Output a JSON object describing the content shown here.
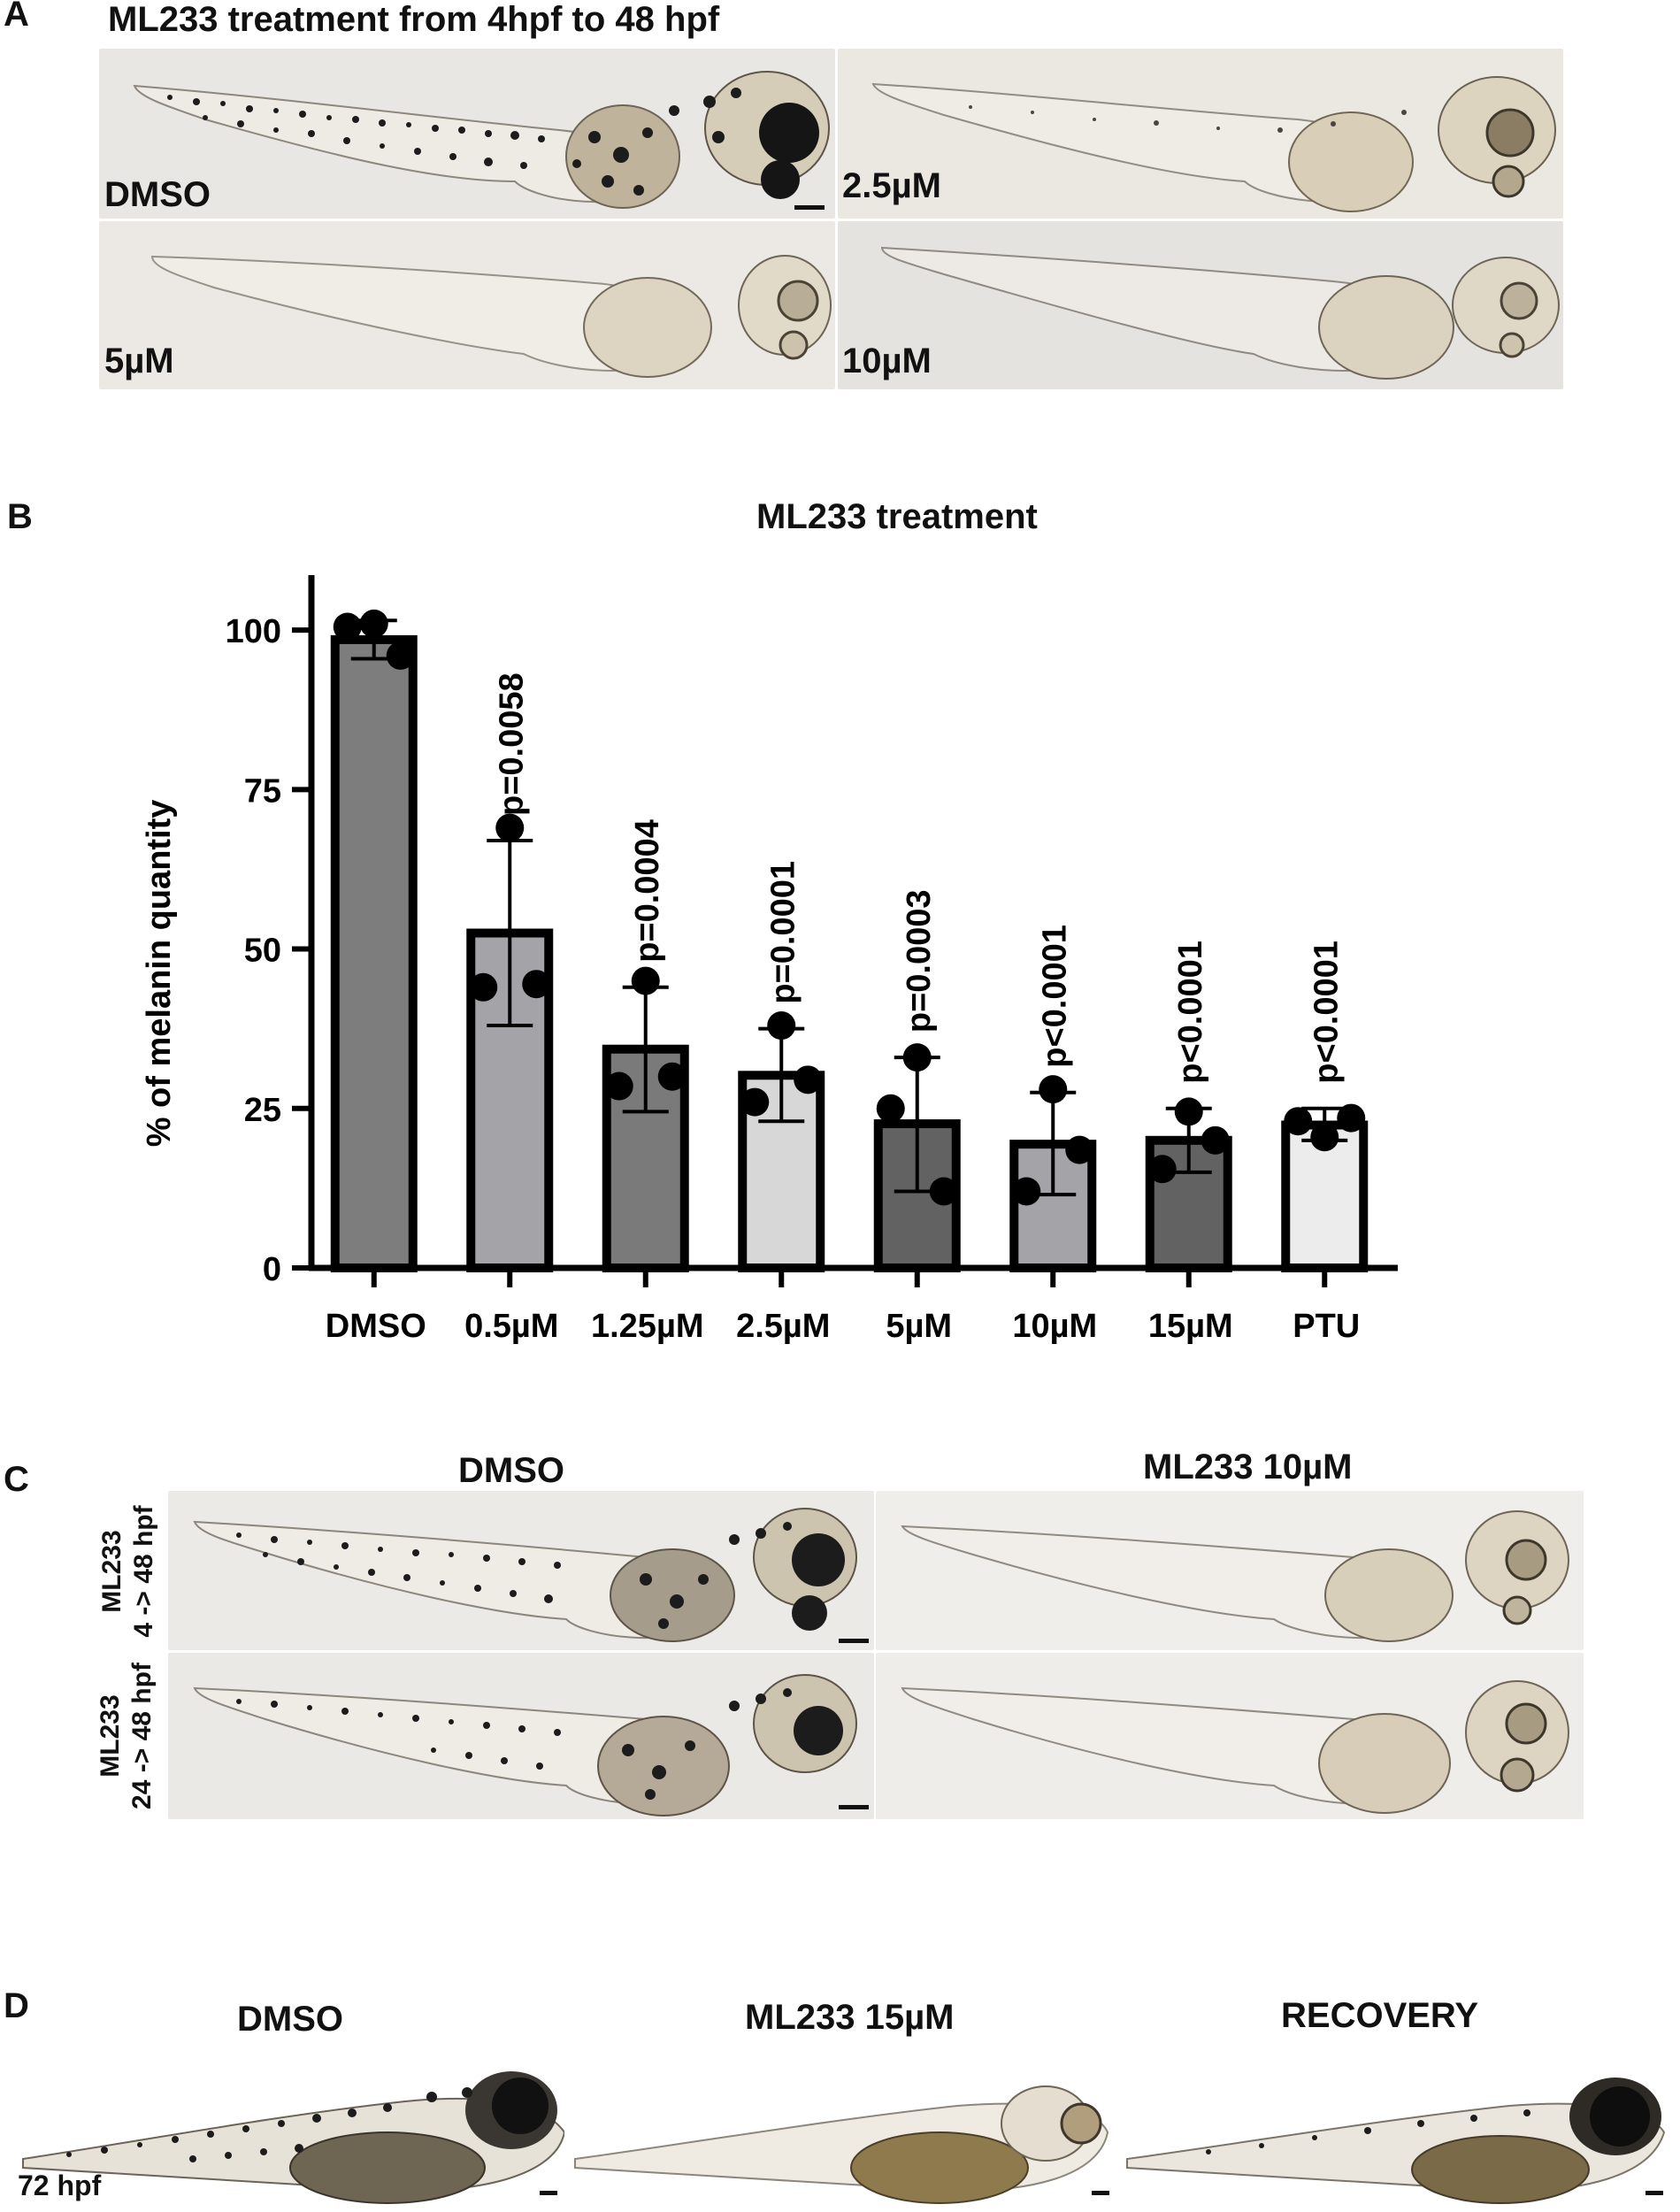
{
  "panel_a": {
    "letter": "A",
    "title": "ML233 treatment from 4hpf to 48 hpf",
    "images": [
      {
        "label": "DMSO",
        "pigment": "heavy"
      },
      {
        "label": "2.5µM",
        "pigment": "light"
      },
      {
        "label": "5µM",
        "pigment": "none"
      },
      {
        "label": "10µM",
        "pigment": "none"
      }
    ]
  },
  "panel_b": {
    "letter": "B"
  },
  "chart_data": {
    "type": "bar",
    "title": "ML233 treatment",
    "xlabel": "",
    "ylabel": "% of melanin quantity",
    "ylim": [
      0,
      110
    ],
    "yticks": [
      0,
      25,
      50,
      75,
      100
    ],
    "categories": [
      "DMSO",
      "0.5µM",
      "1.25µM",
      "2.5µM",
      "5µM",
      "10µM",
      "15µM",
      "PTU"
    ],
    "values": [
      98.5,
      52.5,
      34.3,
      30.2,
      22.6,
      19.4,
      20.0,
      22.4
    ],
    "error_bars": [
      [
        95.5,
        101.5
      ],
      [
        38,
        67
      ],
      [
        24.5,
        44
      ],
      [
        23,
        37.5
      ],
      [
        12,
        33
      ],
      [
        11.5,
        27.5
      ],
      [
        15,
        25
      ],
      [
        20,
        25
      ]
    ],
    "points": [
      [
        101,
        100.5,
        96
      ],
      [
        69,
        44,
        44.5
      ],
      [
        45,
        28.5,
        30
      ],
      [
        38,
        26,
        29.5
      ],
      [
        33,
        25,
        12
      ],
      [
        28,
        12,
        18.5
      ],
      [
        24.5,
        15.5,
        20
      ],
      [
        20.5,
        23,
        23.5
      ]
    ],
    "pvalues": [
      "",
      "p=0.0058",
      "p=0.0004",
      "p=0.0001",
      "p=0.0003",
      "p<0.0001",
      "p<0.0001",
      "p<0.0001"
    ],
    "bar_colors": [
      "#7d7d7d",
      "#a3a3a8",
      "#7a7a7a",
      "#d7d7d7",
      "#626262",
      "#a3a3a8",
      "#626262",
      "#ececec"
    ]
  },
  "panel_c": {
    "letter": "C",
    "col_headers": [
      "DMSO",
      "ML233 10µM"
    ],
    "row_labels": [
      {
        "line1": "ML233",
        "line2": "4 -> 48 hpf"
      },
      {
        "line1": "ML233",
        "line2": "24 -> 48 hpf"
      }
    ]
  },
  "panel_d": {
    "letter": "D",
    "col_headers": [
      "DMSO",
      "ML233 15µM",
      "RECOVERY"
    ],
    "corner_label": "72 hpf"
  }
}
